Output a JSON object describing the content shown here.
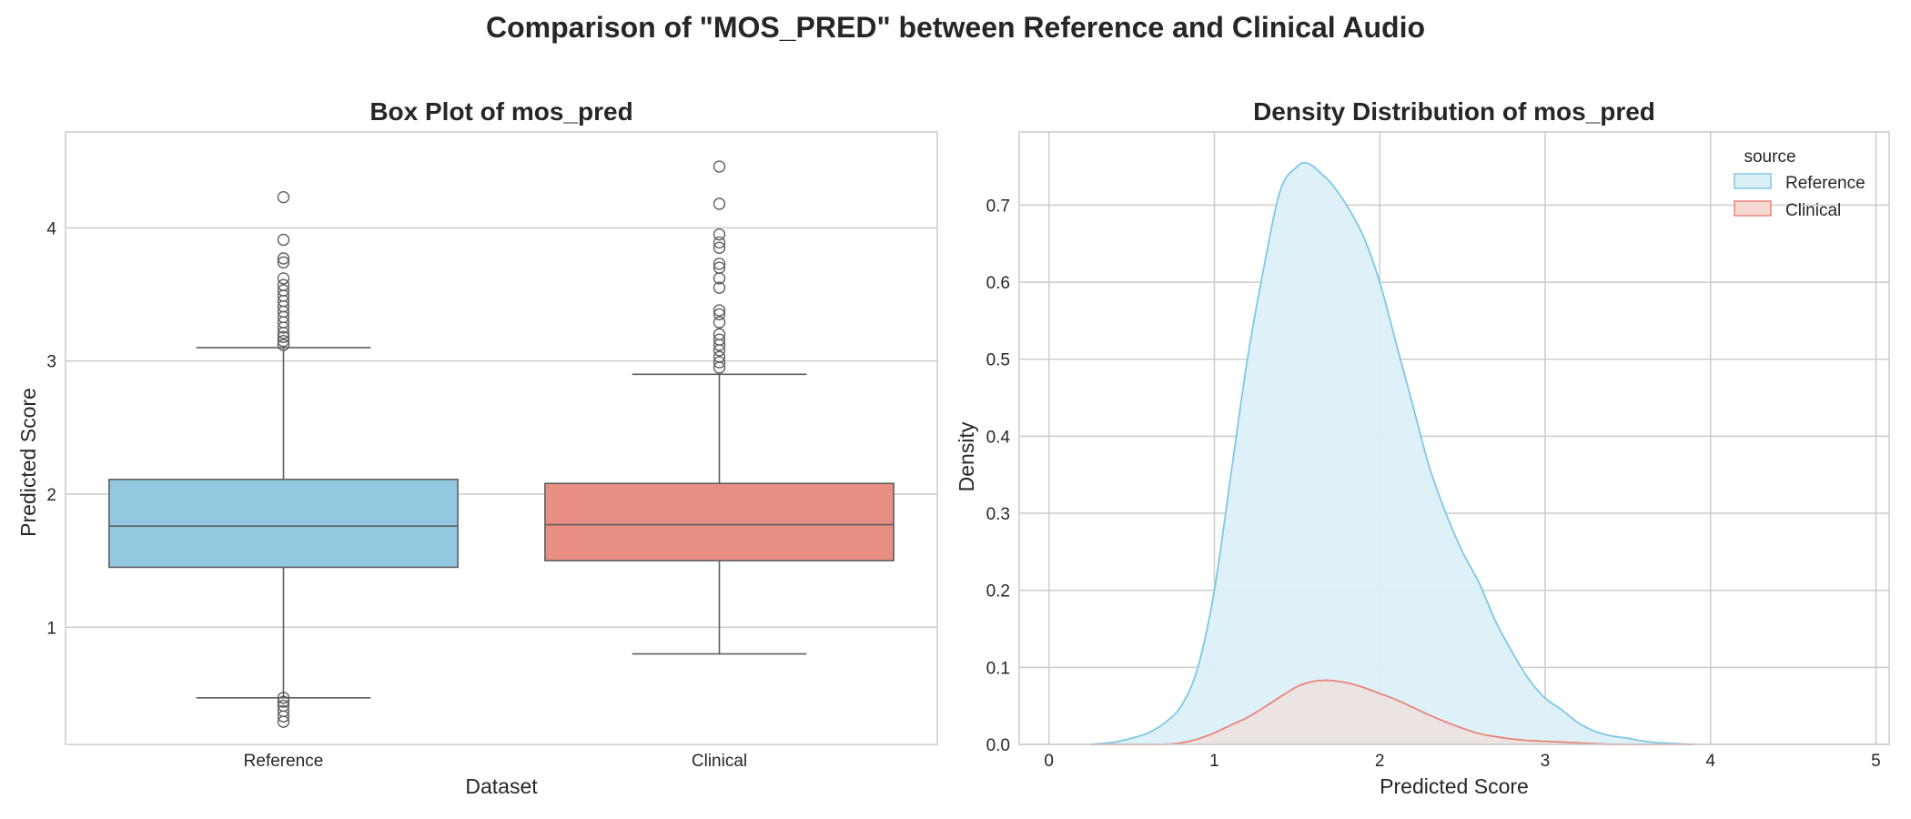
{
  "figure": {
    "title": "Comparison of \"MOS_PRED\" between Reference and Clinical Audio"
  },
  "chart_data": [
    {
      "type": "box",
      "title": "Box Plot of mos_pred",
      "xlabel": "Dataset",
      "ylabel": "Predicted Score",
      "ylim": [
        0.12,
        4.72
      ],
      "yticks": [
        1,
        2,
        3,
        4
      ],
      "ytick_labels": [
        "1",
        "2",
        "3",
        "4"
      ],
      "grid": true,
      "categories": [
        "Reference",
        "Clinical"
      ],
      "boxes": [
        {
          "name": "Reference",
          "color": "#93c9e0",
          "whisker_low": 0.47,
          "q1": 1.45,
          "median": 1.76,
          "q3": 2.11,
          "whisker_high": 3.1,
          "outliers": [
            0.29,
            0.33,
            0.37,
            0.41,
            0.44,
            0.47,
            3.12,
            3.15,
            3.18,
            3.21,
            3.25,
            3.29,
            3.33,
            3.37,
            3.41,
            3.45,
            3.49,
            3.53,
            3.57,
            3.62,
            3.74,
            3.77,
            3.91,
            4.23
          ]
        },
        {
          "name": "Clinical",
          "color": "#e88e82",
          "whisker_low": 0.8,
          "q1": 1.5,
          "median": 1.77,
          "q3": 2.08,
          "whisker_high": 2.9,
          "outliers": [
            2.95,
            2.99,
            3.03,
            3.08,
            3.12,
            3.16,
            3.2,
            3.29,
            3.35,
            3.38,
            3.55,
            3.62,
            3.7,
            3.73,
            3.85,
            3.89,
            3.95,
            4.18,
            4.46
          ]
        }
      ]
    },
    {
      "type": "area",
      "title": "Density Distribution of mos_pred",
      "xlabel": "Predicted Score",
      "ylabel": "Density",
      "xlim": [
        -0.18,
        5.08
      ],
      "ylim": [
        0.0,
        0.795
      ],
      "xticks": [
        0,
        1,
        2,
        3,
        4,
        5
      ],
      "xtick_labels": [
        "0",
        "1",
        "2",
        "3",
        "4",
        "5"
      ],
      "yticks": [
        0.0,
        0.1,
        0.2,
        0.3,
        0.4,
        0.5,
        0.6,
        0.7
      ],
      "ytick_labels": [
        "0.0",
        "0.1",
        "0.2",
        "0.3",
        "0.4",
        "0.5",
        "0.6",
        "0.7"
      ],
      "grid": true,
      "legend": {
        "title": "source",
        "placement": "top-right"
      },
      "x": [
        0.25,
        0.4,
        0.5,
        0.6,
        0.7,
        0.8,
        0.9,
        1.0,
        1.1,
        1.2,
        1.3,
        1.4,
        1.5,
        1.55,
        1.6,
        1.65,
        1.7,
        1.8,
        1.9,
        2.0,
        2.1,
        2.2,
        2.3,
        2.4,
        2.5,
        2.6,
        2.7,
        2.8,
        2.9,
        3.0,
        3.1,
        3.2,
        3.3,
        3.4,
        3.5,
        3.6,
        3.7,
        3.8,
        3.9
      ],
      "series": [
        {
          "name": "Reference",
          "line_color": "#7ec8e3",
          "fill_color": "#dcf0f8",
          "values": [
            0.0,
            0.003,
            0.008,
            0.015,
            0.028,
            0.05,
            0.1,
            0.2,
            0.35,
            0.5,
            0.62,
            0.72,
            0.75,
            0.755,
            0.75,
            0.74,
            0.73,
            0.7,
            0.66,
            0.6,
            0.52,
            0.44,
            0.36,
            0.3,
            0.25,
            0.21,
            0.16,
            0.12,
            0.085,
            0.06,
            0.045,
            0.028,
            0.017,
            0.011,
            0.008,
            0.004,
            0.002,
            0.001,
            0.0
          ]
        },
        {
          "name": "Clinical",
          "line_color": "#e8857a",
          "fill_color": "#f7d7d2",
          "values": [
            0.0,
            0.0,
            0.0,
            0.0,
            0.0,
            0.002,
            0.007,
            0.015,
            0.025,
            0.035,
            0.048,
            0.062,
            0.075,
            0.079,
            0.082,
            0.083,
            0.083,
            0.08,
            0.074,
            0.066,
            0.058,
            0.048,
            0.038,
            0.029,
            0.021,
            0.014,
            0.01,
            0.007,
            0.005,
            0.004,
            0.003,
            0.002,
            0.001,
            0.0,
            0.0,
            0.0,
            0.0,
            0.0,
            0.0
          ]
        }
      ]
    }
  ]
}
